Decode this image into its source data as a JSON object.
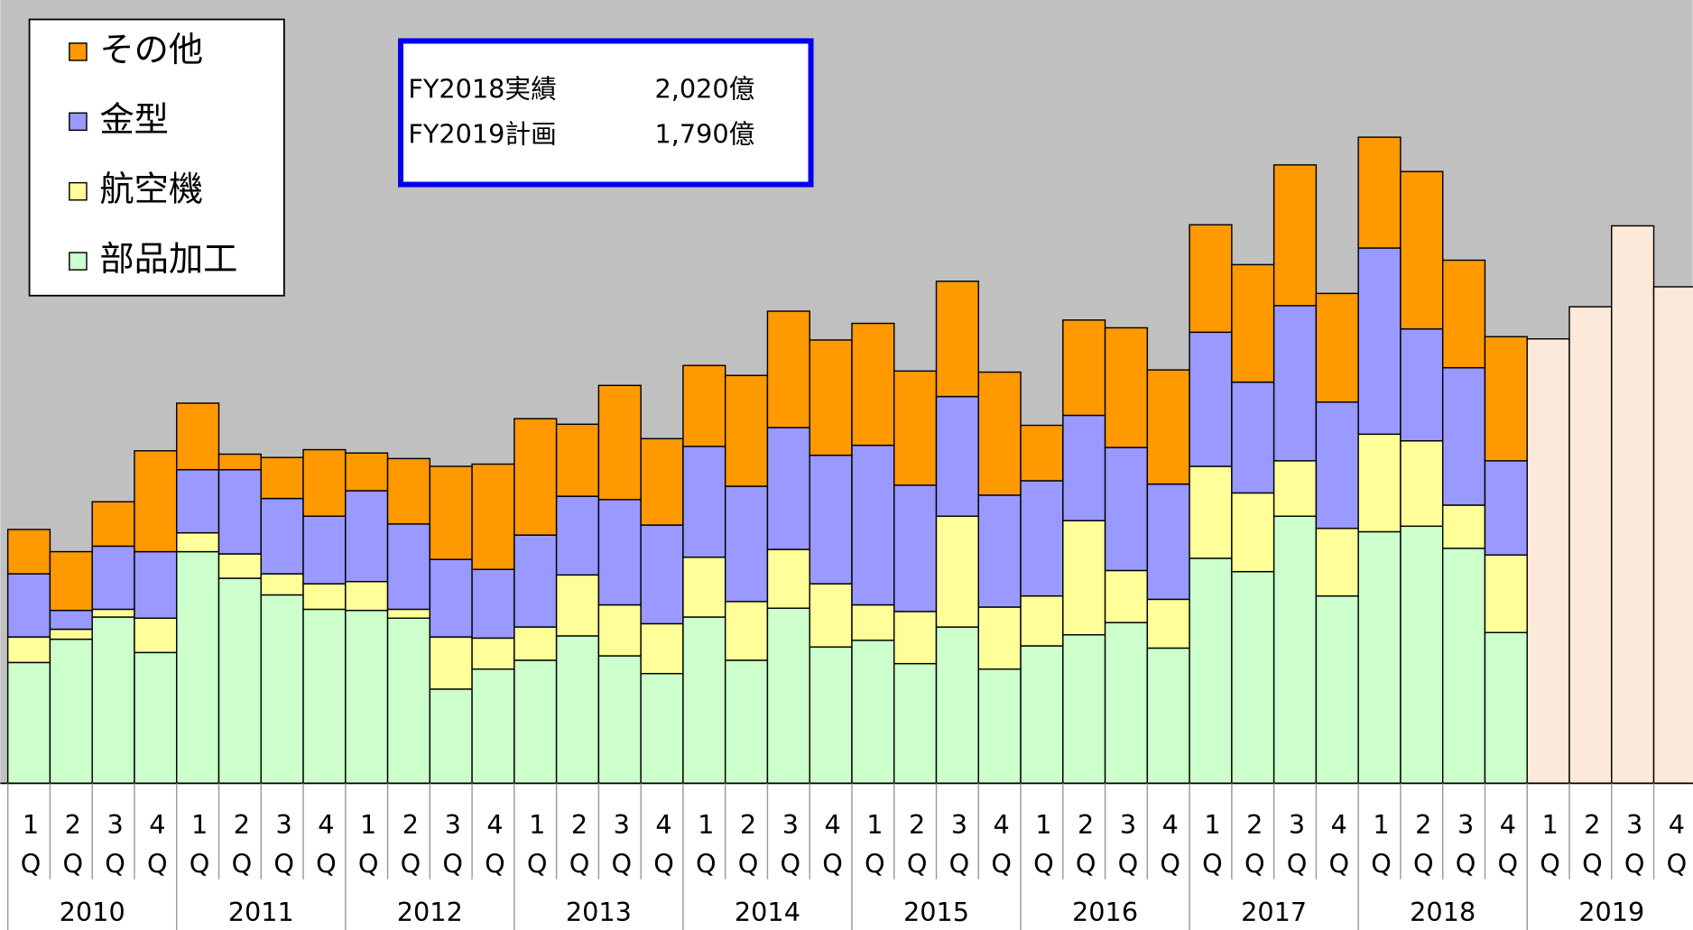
{
  "chart_data": {
    "type": "stacked_bar",
    "categories": [
      "1Q",
      "2Q",
      "3Q",
      "4Q",
      "1Q",
      "2Q",
      "3Q",
      "4Q",
      "1Q",
      "2Q",
      "3Q",
      "4Q",
      "1Q",
      "2Q",
      "3Q",
      "4Q",
      "1Q",
      "2Q",
      "3Q",
      "4Q",
      "1Q",
      "2Q",
      "3Q",
      "4Q",
      "1Q",
      "2Q",
      "3Q",
      "4Q",
      "1Q",
      "2Q",
      "3Q",
      "4Q",
      "1Q",
      "2Q",
      "3Q",
      "4Q",
      "1Q",
      "2Q",
      "3Q",
      "4Q"
    ],
    "years": [
      "2010",
      "2011",
      "2012",
      "2013",
      "2014",
      "2015",
      "2016",
      "2017",
      "2018",
      "2019"
    ],
    "series": [
      {
        "name": "部品加工",
        "color": "#ccffcc",
        "values": [
          109,
          130,
          150,
          118,
          209,
          185,
          170,
          157,
          156,
          149,
          85,
          103,
          111,
          133,
          115,
          99,
          150,
          111,
          158,
          123,
          129,
          108,
          141,
          103,
          124,
          134,
          145,
          122,
          203,
          191,
          241,
          169,
          227,
          232,
          212,
          136,
          null,
          null,
          null,
          null
        ]
      },
      {
        "name": "航空機",
        "color": "#ffff99",
        "values": [
          23,
          9,
          7,
          31,
          17,
          22,
          19,
          23,
          26,
          8,
          47,
          28,
          30,
          55,
          46,
          45,
          54,
          53,
          53,
          57,
          32,
          47,
          100,
          56,
          45,
          103,
          47,
          44,
          83,
          71,
          50,
          61,
          88,
          77,
          39,
          70,
          null,
          null,
          null,
          null
        ]
      },
      {
        "name": "金型",
        "color": "#9999ff",
        "values": [
          57,
          17,
          57,
          60,
          57,
          76,
          68,
          61,
          82,
          77,
          70,
          62,
          83,
          71,
          95,
          89,
          100,
          104,
          110,
          116,
          144,
          114,
          108,
          101,
          104,
          95,
          111,
          104,
          121,
          100,
          140,
          114,
          168,
          101,
          124,
          85,
          null,
          null,
          null,
          null
        ]
      },
      {
        "name": "その他",
        "color": "#ff9900",
        "values": [
          40,
          53,
          40,
          91,
          60,
          14,
          37,
          60,
          34,
          59,
          84,
          95,
          105,
          65,
          103,
          78,
          73,
          100,
          105,
          104,
          110,
          103,
          104,
          111,
          50,
          86,
          108,
          103,
          97,
          106,
          127,
          98,
          100,
          142,
          97,
          112,
          null,
          null,
          null,
          null
        ]
      },
      {
        "color": "#fde9d9",
        "values": [
          null,
          null,
          null,
          null,
          null,
          null,
          null,
          null,
          null,
          null,
          null,
          null,
          null,
          null,
          null,
          null,
          null,
          null,
          null,
          null,
          null,
          null,
          null,
          null,
          null,
          null,
          null,
          null,
          null,
          null,
          null,
          null,
          null,
          null,
          null,
          null,
          401,
          430,
          503,
          448
        ]
      }
    ],
    "ylim": [
      0,
      700
    ],
    "yticks": [
      0,
      100,
      200,
      300,
      400,
      500,
      600,
      700
    ],
    "grid": true,
    "legend": "top-left",
    "annotation": [
      {
        "label": "FY2018実績",
        "value": "2,020億"
      },
      {
        "label": "FY2019計画",
        "value": "1,790億"
      }
    ]
  }
}
